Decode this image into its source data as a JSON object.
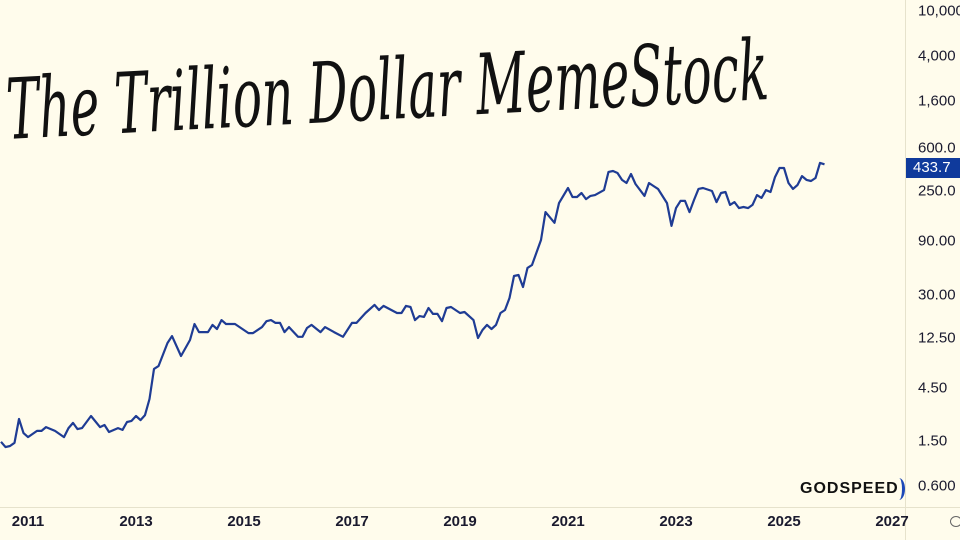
{
  "title": "The Trillion Dollar MemeStock",
  "logo": "GODSPEED",
  "current_price": "433.7",
  "colors": {
    "background": "#fffcec",
    "line": "#1f3c94",
    "price_tag": "#0f3a9c",
    "logo_accent": "#1c48b8"
  },
  "chart_data": {
    "type": "line",
    "title": "The Trillion Dollar MemeStock",
    "y_scale": "log",
    "ylim": [
      0.55,
      11000
    ],
    "xlim": [
      "2010-07",
      "2027-01"
    ],
    "grid": false,
    "y_ticks": [
      "10,000",
      "4,000",
      "1,600",
      "600.0",
      "250.0",
      "90.00",
      "30.00",
      "12.50",
      "4.50",
      "1.50",
      "0.600"
    ],
    "y_tick_values": [
      10000,
      4000,
      1600,
      600,
      250,
      90,
      30,
      12.5,
      4.5,
      1.5,
      0.6
    ],
    "x_ticks": [
      "2011",
      "2013",
      "2015",
      "2017",
      "2019",
      "2021",
      "2023",
      "2025",
      "2027"
    ],
    "series": [
      {
        "x": [
          "2010-07",
          "2010-08",
          "2010-09",
          "2010-10",
          "2010-11",
          "2010-12",
          "2011-01",
          "2011-03",
          "2011-04",
          "2011-05",
          "2011-07",
          "2011-09",
          "2011-10",
          "2011-11",
          "2011-12",
          "2012-01",
          "2012-03",
          "2012-05",
          "2012-06",
          "2012-07",
          "2012-09",
          "2012-10",
          "2012-11",
          "2012-12",
          "2013-01",
          "2013-02",
          "2013-03",
          "2013-04",
          "2013-05",
          "2013-06",
          "2013-08",
          "2013-09",
          "2013-11",
          "2014-01",
          "2014-02",
          "2014-03",
          "2014-05",
          "2014-06",
          "2014-07",
          "2014-08",
          "2014-09",
          "2014-11",
          "2015-02",
          "2015-03",
          "2015-05",
          "2015-06",
          "2015-07",
          "2015-08",
          "2015-09",
          "2015-10",
          "2015-11",
          "2016-01",
          "2016-02",
          "2016-03",
          "2016-04",
          "2016-06",
          "2016-07",
          "2016-09",
          "2016-11",
          "2017-01",
          "2017-02",
          "2017-04",
          "2017-06",
          "2017-07",
          "2017-08",
          "2017-11",
          "2017-12",
          "2018-01",
          "2018-02",
          "2018-03",
          "2018-04",
          "2018-05",
          "2018-06",
          "2018-07",
          "2018-08",
          "2018-09",
          "2018-10",
          "2018-11",
          "2019-01",
          "2019-02",
          "2019-04",
          "2019-05",
          "2019-06",
          "2019-07",
          "2019-08",
          "2019-09",
          "2019-10",
          "2019-11",
          "2019-12",
          "2020-01",
          "2020-02",
          "2020-03",
          "2020-04",
          "2020-05",
          "2020-07",
          "2020-08",
          "2020-10",
          "2020-11",
          "2021-01",
          "2021-02",
          "2021-03",
          "2021-04",
          "2021-05",
          "2021-06",
          "2021-07",
          "2021-09",
          "2021-10",
          "2021-11",
          "2021-12",
          "2022-01",
          "2022-02",
          "2022-03",
          "2022-04",
          "2022-06",
          "2022-07",
          "2022-08",
          "2022-09",
          "2022-11",
          "2022-12",
          "2023-01",
          "2023-02",
          "2023-03",
          "2023-04",
          "2023-05",
          "2023-06",
          "2023-07",
          "2023-09",
          "2023-10",
          "2023-11",
          "2023-12",
          "2024-01",
          "2024-02",
          "2024-03",
          "2024-04",
          "2024-05",
          "2024-06",
          "2024-07",
          "2024-08",
          "2024-09",
          "2024-10",
          "2024-11",
          "2024-12",
          "2025-01",
          "2025-02",
          "2025-03",
          "2025-04",
          "2025-05",
          "2025-06",
          "2025-07",
          "2025-08",
          "2025-09",
          "2025-10"
        ],
        "y": [
          1.48,
          1.33,
          1.36,
          1.45,
          2.36,
          1.77,
          1.63,
          1.85,
          1.85,
          2.0,
          1.85,
          1.63,
          1.96,
          2.18,
          1.92,
          1.96,
          2.51,
          2.0,
          2.09,
          1.81,
          1.96,
          1.89,
          2.22,
          2.27,
          2.51,
          2.31,
          2.56,
          3.56,
          6.58,
          6.98,
          11.2,
          12.9,
          8.58,
          11.9,
          16.5,
          14.0,
          14.0,
          16.2,
          14.9,
          17.9,
          16.5,
          16.5,
          13.7,
          13.7,
          15.5,
          17.5,
          17.9,
          16.9,
          16.9,
          14.0,
          15.5,
          12.7,
          12.7,
          15.2,
          16.2,
          14.0,
          15.5,
          14.0,
          12.7,
          16.9,
          16.9,
          20.7,
          24.4,
          22.0,
          23.9,
          20.7,
          20.7,
          23.9,
          23.4,
          17.9,
          19.4,
          19.1,
          22.9,
          20.3,
          20.3,
          17.5,
          22.9,
          23.4,
          20.7,
          21.1,
          17.9,
          12.4,
          14.6,
          16.2,
          14.9,
          16.2,
          20.7,
          22.0,
          28.1,
          44.1,
          45.0,
          35.2,
          52.0,
          55.2,
          92.1,
          163,
          131,
          196,
          267,
          222,
          222,
          241,
          213,
          227,
          231,
          256,
          371,
          378,
          363,
          315,
          296,
          356,
          290,
          227,
          296,
          278,
          262,
          196,
          123,
          177,
          205,
          205,
          163,
          209,
          262,
          267,
          251,
          200,
          241,
          246,
          189,
          200,
          177,
          181,
          177,
          189,
          231,
          218,
          256,
          246,
          334,
          402,
          402,
          296,
          262,
          284,
          341,
          315,
          308,
          328,
          446,
          433.7
        ]
      }
    ]
  }
}
